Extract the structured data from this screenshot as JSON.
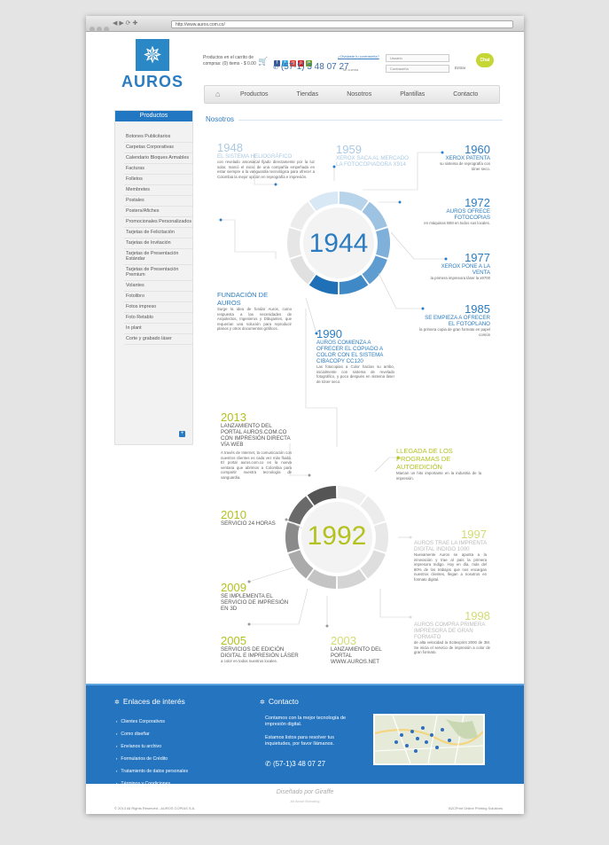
{
  "browser": {
    "url": "http://www.auros.com.co/"
  },
  "brand": {
    "name": "AUROS",
    "accent": "#2b7cc0",
    "olive": "#b3c21f"
  },
  "header": {
    "cart_text": "Productos en el carrito de compras: (0) items - $ 0.00",
    "phone": "(57-1) 3 48 07 27",
    "forgot": "¿Olvidaste tu contraseña?",
    "account": "Mi cuenta",
    "user_placeholder": "Usuario",
    "pass_placeholder": "Contraseña",
    "enter": "Entrar",
    "chat": "Chat"
  },
  "nav": [
    "Productos",
    "Tiendas",
    "Nosotros",
    "Plantillas",
    "Contacto"
  ],
  "sidebar": {
    "title": "Productos",
    "items": [
      "Botones Publicitarios",
      "Carpetas Corporativas",
      "Calendario Bloques Armables",
      "Facturas",
      "Folletos",
      "Membretes",
      "Postales",
      "Posters/Afiches",
      "Promocionales Personalizados",
      "Tarjetas de Felicitación",
      "Tarjetas de Invitación",
      "Tarjetas de Presentación Estándar",
      "Tarjetas de Presentación Premium",
      "Volantes",
      "Fotolibro",
      "Fotos impreso",
      "Foto Retablo",
      "In plant",
      "Corte y grabado láser"
    ]
  },
  "section_title": "Nosotros",
  "timeline1": {
    "center": "1944",
    "events": [
      {
        "year": "1948",
        "title": "EL SISTEMA HELIOGRÁFICO",
        "body": "con revelado amoniacal fijado directamente por la luz solar, marcó el inicio de una compañía empeñada en estar siempre a la vanguardia tecnológica para ofrecer a Colombia la mejor opción en reprografía e impresión."
      },
      {
        "year": "1959",
        "title": "XEROX SACA AL MERCADO LA FOTOCOPIADORA X914",
        "body": ""
      },
      {
        "year": "1960",
        "title": "XEROX PATENTA",
        "body": "su sistema de reprografía con tóner seco."
      },
      {
        "year": "1972",
        "title": "AUROS OFRECE FOTOCOPIAS",
        "body": "en máquinas IBM en todos sus locales."
      },
      {
        "year": "1977",
        "title": "XEROX PONE A LA VENTA",
        "body": "la primera impresora láser la x9700"
      },
      {
        "year": "1985",
        "title": "SE EMPIEZA A OFRECER EL FOTOPLANO",
        "body": "la primera copia de gran formato en papel común"
      },
      {
        "year": "1990",
        "title": "AUROS COMIENZA A OFRECER EL COPIADO A COLOR CON EL SISTEMA CIBACOPY CC120",
        "body": "Las fotocopias a Color hacían su arribo, inicialmente con sistema de revelado fotográfico, y poco después en sistema láser de tóner seco."
      },
      {
        "year": "",
        "title": "FUNDACIÓN DE AUROS",
        "body": "Surge la idea de fundar Auros, como respuesta a las necesidades de Arquitectos, Ingenieros y Dibujantes, que requerían una solución para reproducir planos y otros documentos gráficos."
      }
    ]
  },
  "timeline2": {
    "center": "1992",
    "events": [
      {
        "year": "2013",
        "title": "LANZAMIENTO DEL PORTAL AUROS.COM.CO CON IMPRESIÓN DIRECTA VÍA WEB",
        "body": "A través de Internet, la comunicación con nuestros clientes es cada vez más fluida. El portal auros.com.co es la nueva ventana que abrimos a Colombia para compartir nuestra tecnología de vanguardia."
      },
      {
        "year": "",
        "title": "LLEGADA DE LOS PROGRAMAS DE AUTOEDICIÓN",
        "body": "Marcan un hito importante en la industria de la impresión."
      },
      {
        "year": "2010",
        "title": "SERVICIO 24 HORAS",
        "body": ""
      },
      {
        "year": "1997",
        "title": "AUROS TRAE LA IMPRENTA DIGITAL INDIGO 1000",
        "body": "Nuevamente Auros se apunta a la innovación y trae al país la primera impresora Indigo. Hoy en día, más del 80% de los trabajos que nos encargan nuestros clientes, llegan a nosotros en formato digital."
      },
      {
        "year": "2009",
        "title": "SE IMPLEMENTA EL SERVICIO DE IMPRESIÓN EN 3D",
        "body": ""
      },
      {
        "year": "1998",
        "title": "AUROS COMPRA PRIMERA IMPRESORA DE GRAN FORMATO",
        "body": "de alta velocidad la Scitexprint 2000 de 3M. Se inicia el servicio de impresión a color de gran formato."
      },
      {
        "year": "2005",
        "title": "SERVICIOS DE EDICIÓN DIGITAL E IMPRESIÓN LÁSER",
        "body": "a color en todos nuestros locales."
      },
      {
        "year": "2003",
        "title": "LANZAMIENTO DEL PORTAL WWW.AUROS.NET",
        "body": ""
      }
    ]
  },
  "footer": {
    "links_title": "Enlaces de interés",
    "links": [
      "Clientes Corporativos",
      "Como diseñar",
      "Envíanos tu archivo",
      "Formularios de Crédito",
      "Tratamiento de datos personales",
      "Términos y Condiciones"
    ],
    "contact_title": "Contacto",
    "contact_text1": "Contamos con la mejor tecnología de impresión digital.",
    "contact_text2": "Estamos listos para resolver tus inquietudes, por favor llámanos.",
    "phone": "(57-1)3 48 07 27",
    "designed": "Diseñado por Giraffe",
    "tagline": "All About Branding",
    "copyright": "© 2013 All Rights Reserved - AUROS COPIAS S.A.",
    "solution": "B2CPrint Online Printing Solutions"
  }
}
